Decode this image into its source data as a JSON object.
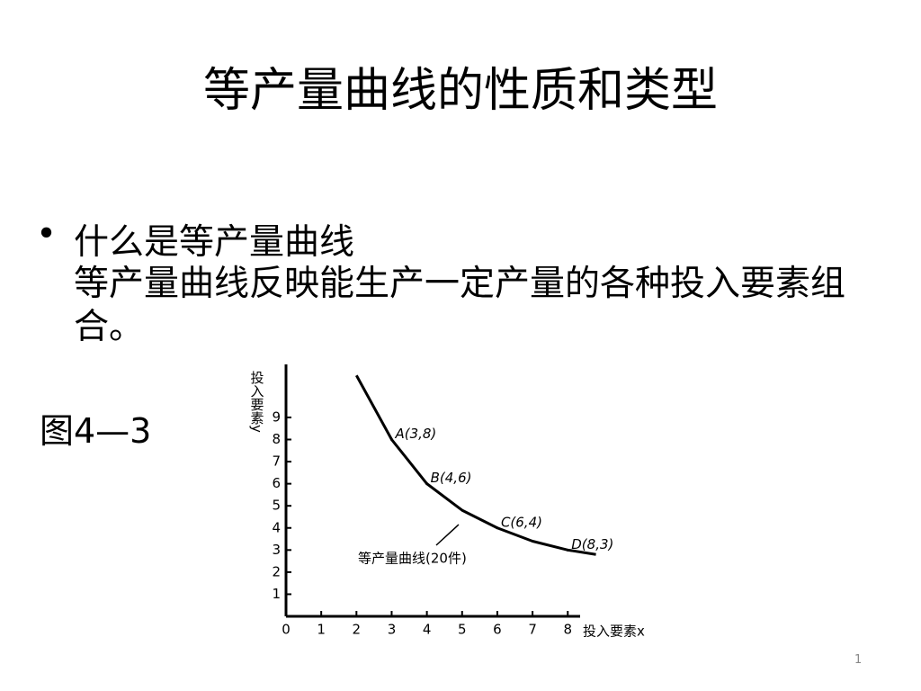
{
  "slide": {
    "title": "等产量曲线的性质和类型",
    "bullet": "什么是等产量曲线",
    "body": "等产量曲线反映能生产一定产量的各种投入要素组合。",
    "figure_label": "图4—3",
    "page_number": "1"
  },
  "chart_data": {
    "type": "line",
    "x_label": "投入要素x",
    "y_label": "投入要素y",
    "x": [
      2,
      3,
      4,
      5,
      6,
      7,
      8,
      8.8
    ],
    "series": [
      {
        "name": "等产量曲线(20件)",
        "color": "#000000",
        "values": [
          10.9,
          8,
          6,
          4.8,
          4,
          3.4,
          3,
          2.8
        ]
      }
    ],
    "points": [
      {
        "label": "A(3,8)",
        "x": 3,
        "y": 8
      },
      {
        "label": "B(4,6)",
        "x": 4,
        "y": 6
      },
      {
        "label": "C(6,4)",
        "x": 6,
        "y": 4
      },
      {
        "label": "D(8,3)",
        "x": 8,
        "y": 3
      }
    ],
    "xlim": [
      0,
      8.3
    ],
    "ylim": [
      0,
      11.4
    ],
    "xticks": [
      0,
      1,
      2,
      3,
      4,
      5,
      6,
      7,
      8
    ],
    "yticks": [
      1,
      2,
      3,
      4,
      5,
      6,
      7,
      8,
      9
    ]
  }
}
